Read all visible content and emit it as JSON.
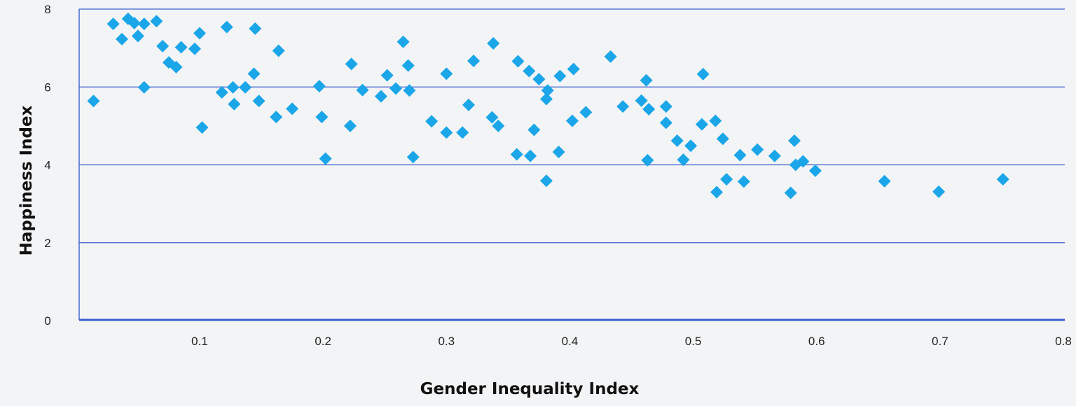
{
  "chart_data": {
    "type": "scatter",
    "xlabel": "Gender Inequality Index",
    "ylabel": "Happiness Index",
    "xlim": [
      0,
      0.8
    ],
    "ylim": [
      0,
      8
    ],
    "x_ticks": [
      "0.1",
      "0.2",
      "0.3",
      "0.4",
      "0.5",
      "0.6",
      "0.7",
      "0.8"
    ],
    "y_ticks": [
      "0",
      "2",
      "4",
      "6",
      "8"
    ],
    "grid": "horizontal",
    "marker_color": "#1aa6e8",
    "gridline_color": "#3a5fcf",
    "points": [
      [
        0.014,
        5.64
      ],
      [
        0.03,
        7.62
      ],
      [
        0.037,
        7.23
      ],
      [
        0.042,
        7.75
      ],
      [
        0.047,
        7.64
      ],
      [
        0.05,
        7.31
      ],
      [
        0.055,
        7.62
      ],
      [
        0.055,
        5.99
      ],
      [
        0.065,
        7.69
      ],
      [
        0.07,
        7.05
      ],
      [
        0.075,
        6.63
      ],
      [
        0.081,
        6.51
      ],
      [
        0.085,
        7.02
      ],
      [
        0.096,
        6.98
      ],
      [
        0.1,
        7.38
      ],
      [
        0.102,
        4.96
      ],
      [
        0.118,
        5.86
      ],
      [
        0.122,
        7.54
      ],
      [
        0.127,
        5.99
      ],
      [
        0.128,
        5.56
      ],
      [
        0.137,
        5.99
      ],
      [
        0.144,
        6.34
      ],
      [
        0.145,
        7.5
      ],
      [
        0.148,
        5.64
      ],
      [
        0.162,
        5.23
      ],
      [
        0.164,
        6.93
      ],
      [
        0.175,
        5.44
      ],
      [
        0.197,
        6.02
      ],
      [
        0.199,
        5.23
      ],
      [
        0.202,
        4.16
      ],
      [
        0.222,
        5.0
      ],
      [
        0.223,
        6.59
      ],
      [
        0.232,
        5.92
      ],
      [
        0.247,
        5.76
      ],
      [
        0.252,
        6.3
      ],
      [
        0.259,
        5.96
      ],
      [
        0.265,
        7.16
      ],
      [
        0.269,
        6.55
      ],
      [
        0.27,
        5.91
      ],
      [
        0.273,
        4.2
      ],
      [
        0.288,
        5.12
      ],
      [
        0.3,
        4.83
      ],
      [
        0.3,
        6.34
      ],
      [
        0.313,
        4.83
      ],
      [
        0.318,
        5.54
      ],
      [
        0.322,
        6.67
      ],
      [
        0.337,
        5.22
      ],
      [
        0.338,
        7.12
      ],
      [
        0.342,
        5.0
      ],
      [
        0.357,
        4.27
      ],
      [
        0.358,
        6.66
      ],
      [
        0.367,
        6.41
      ],
      [
        0.368,
        4.23
      ],
      [
        0.371,
        4.9
      ],
      [
        0.375,
        6.2
      ],
      [
        0.381,
        3.59
      ],
      [
        0.381,
        5.69
      ],
      [
        0.382,
        5.91
      ],
      [
        0.391,
        4.33
      ],
      [
        0.392,
        6.28
      ],
      [
        0.402,
        5.13
      ],
      [
        0.403,
        6.46
      ],
      [
        0.413,
        5.35
      ],
      [
        0.433,
        6.78
      ],
      [
        0.443,
        5.5
      ],
      [
        0.458,
        5.65
      ],
      [
        0.462,
        6.17
      ],
      [
        0.463,
        4.12
      ],
      [
        0.464,
        5.43
      ],
      [
        0.478,
        5.08
      ],
      [
        0.478,
        5.5
      ],
      [
        0.487,
        4.62
      ],
      [
        0.492,
        4.13
      ],
      [
        0.498,
        4.49
      ],
      [
        0.507,
        5.04
      ],
      [
        0.508,
        6.33
      ],
      [
        0.518,
        5.13
      ],
      [
        0.519,
        3.3
      ],
      [
        0.524,
        4.67
      ],
      [
        0.527,
        3.63
      ],
      [
        0.538,
        4.25
      ],
      [
        0.541,
        3.57
      ],
      [
        0.552,
        4.39
      ],
      [
        0.566,
        4.23
      ],
      [
        0.579,
        3.28
      ],
      [
        0.582,
        4.62
      ],
      [
        0.583,
        4.0
      ],
      [
        0.589,
        4.09
      ],
      [
        0.599,
        3.85
      ],
      [
        0.655,
        3.58
      ],
      [
        0.699,
        3.31
      ],
      [
        0.751,
        3.63
      ]
    ]
  }
}
